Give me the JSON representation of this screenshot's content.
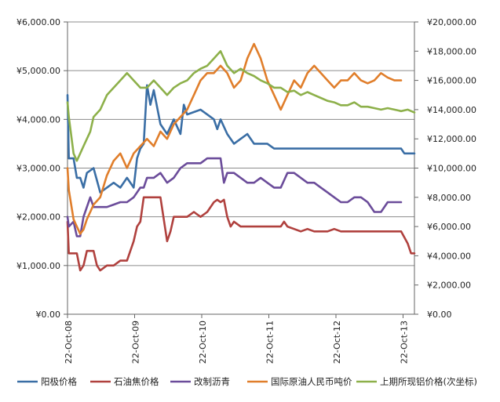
{
  "chart_data": {
    "type": "line",
    "title": "",
    "y_left": {
      "ticks": [
        "¥0.00",
        "¥1,000.00",
        "¥2,000.00",
        "¥3,000.00",
        "¥4,000.00",
        "¥5,000.00",
        "¥6,000.00"
      ],
      "range": [
        0,
        6000
      ]
    },
    "y_right": {
      "ticks": [
        "¥0.00",
        "¥2,000.00",
        "¥4,000.00",
        "¥6,000.00",
        "¥8,000.00",
        "¥10,000.00",
        "¥12,000.00",
        "¥14,000.00",
        "¥16,000.00",
        "¥18,000.00",
        "¥20,000.00"
      ],
      "range": [
        0,
        20000
      ]
    },
    "x_axis": {
      "ticks": [
        "22-Oct-08",
        "22-Oct-09",
        "22-Oct-10",
        "22-Oct-11",
        "22-Oct-12",
        "22-Oct-13"
      ],
      "range": [
        2008.81,
        2014.0
      ]
    },
    "grid": "horizontal",
    "legend_position": "bottom",
    "series": [
      {
        "name": "阳极价格",
        "axis": "left",
        "color": "#3A6EA5",
        "points": [
          [
            2008.81,
            4500
          ],
          [
            2008.83,
            3200
          ],
          [
            2008.9,
            3200
          ],
          [
            2008.95,
            2800
          ],
          [
            2009.0,
            2800
          ],
          [
            2009.05,
            2600
          ],
          [
            2009.1,
            2900
          ],
          [
            2009.2,
            3000
          ],
          [
            2009.3,
            2500
          ],
          [
            2009.4,
            2600
          ],
          [
            2009.5,
            2700
          ],
          [
            2009.6,
            2600
          ],
          [
            2009.7,
            2800
          ],
          [
            2009.8,
            2600
          ],
          [
            2009.85,
            3200
          ],
          [
            2009.9,
            3400
          ],
          [
            2009.95,
            3500
          ],
          [
            2010.0,
            4700
          ],
          [
            2010.05,
            4300
          ],
          [
            2010.1,
            4600
          ],
          [
            2010.2,
            3900
          ],
          [
            2010.3,
            3700
          ],
          [
            2010.4,
            4000
          ],
          [
            2010.5,
            3700
          ],
          [
            2010.55,
            4300
          ],
          [
            2010.6,
            4100
          ],
          [
            2010.7,
            4150
          ],
          [
            2010.8,
            4200
          ],
          [
            2010.9,
            4100
          ],
          [
            2011.0,
            4000
          ],
          [
            2011.05,
            3800
          ],
          [
            2011.1,
            4000
          ],
          [
            2011.2,
            3700
          ],
          [
            2011.3,
            3500
          ],
          [
            2011.4,
            3600
          ],
          [
            2011.5,
            3700
          ],
          [
            2011.6,
            3500
          ],
          [
            2011.7,
            3500
          ],
          [
            2011.8,
            3500
          ],
          [
            2011.9,
            3400
          ],
          [
            2012.0,
            3400
          ],
          [
            2012.2,
            3400
          ],
          [
            2012.5,
            3400
          ],
          [
            2012.8,
            3400
          ],
          [
            2013.0,
            3400
          ],
          [
            2013.5,
            3400
          ],
          [
            2013.8,
            3400
          ],
          [
            2013.85,
            3300
          ],
          [
            2014.0,
            3300
          ]
        ]
      },
      {
        "name": "石油焦价格",
        "axis": "left",
        "color": "#B0413E",
        "points": [
          [
            2008.81,
            1900
          ],
          [
            2008.83,
            1250
          ],
          [
            2008.95,
            1250
          ],
          [
            2009.0,
            900
          ],
          [
            2009.05,
            1000
          ],
          [
            2009.1,
            1300
          ],
          [
            2009.2,
            1300
          ],
          [
            2009.25,
            1000
          ],
          [
            2009.3,
            900
          ],
          [
            2009.4,
            1000
          ],
          [
            2009.5,
            1000
          ],
          [
            2009.6,
            1100
          ],
          [
            2009.7,
            1100
          ],
          [
            2009.8,
            1500
          ],
          [
            2009.85,
            1800
          ],
          [
            2009.9,
            1900
          ],
          [
            2009.95,
            2400
          ],
          [
            2010.0,
            2400
          ],
          [
            2010.1,
            2400
          ],
          [
            2010.2,
            2400
          ],
          [
            2010.3,
            1500
          ],
          [
            2010.35,
            1700
          ],
          [
            2010.4,
            2000
          ],
          [
            2010.5,
            2000
          ],
          [
            2010.6,
            2000
          ],
          [
            2010.7,
            2100
          ],
          [
            2010.8,
            2000
          ],
          [
            2010.9,
            2100
          ],
          [
            2011.0,
            2300
          ],
          [
            2011.05,
            2350
          ],
          [
            2011.1,
            2300
          ],
          [
            2011.15,
            2350
          ],
          [
            2011.2,
            2000
          ],
          [
            2011.25,
            1800
          ],
          [
            2011.3,
            1900
          ],
          [
            2011.4,
            1800
          ],
          [
            2011.5,
            1800
          ],
          [
            2011.6,
            1800
          ],
          [
            2011.7,
            1800
          ],
          [
            2011.8,
            1800
          ],
          [
            2011.9,
            1800
          ],
          [
            2012.0,
            1800
          ],
          [
            2012.05,
            1900
          ],
          [
            2012.1,
            1800
          ],
          [
            2012.2,
            1750
          ],
          [
            2012.3,
            1700
          ],
          [
            2012.4,
            1750
          ],
          [
            2012.5,
            1700
          ],
          [
            2012.6,
            1700
          ],
          [
            2012.7,
            1700
          ],
          [
            2012.8,
            1750
          ],
          [
            2012.9,
            1700
          ],
          [
            2013.0,
            1700
          ],
          [
            2013.2,
            1700
          ],
          [
            2013.5,
            1700
          ],
          [
            2013.8,
            1700
          ],
          [
            2013.9,
            1450
          ],
          [
            2013.95,
            1250
          ],
          [
            2014.0,
            1250
          ]
        ]
      },
      {
        "name": "改制沥青",
        "axis": "left",
        "color": "#6B4C9A",
        "points": [
          [
            2008.81,
            2000
          ],
          [
            2008.83,
            1800
          ],
          [
            2008.9,
            1900
          ],
          [
            2008.95,
            1600
          ],
          [
            2009.0,
            1600
          ],
          [
            2009.05,
            2000
          ],
          [
            2009.1,
            2200
          ],
          [
            2009.15,
            2400
          ],
          [
            2009.2,
            2200
          ],
          [
            2009.3,
            2200
          ],
          [
            2009.4,
            2200
          ],
          [
            2009.5,
            2250
          ],
          [
            2009.6,
            2300
          ],
          [
            2009.7,
            2300
          ],
          [
            2009.8,
            2400
          ],
          [
            2009.9,
            2600
          ],
          [
            2009.95,
            2600
          ],
          [
            2010.0,
            2800
          ],
          [
            2010.1,
            2800
          ],
          [
            2010.2,
            2900
          ],
          [
            2010.3,
            2700
          ],
          [
            2010.4,
            2800
          ],
          [
            2010.5,
            3000
          ],
          [
            2010.6,
            3100
          ],
          [
            2010.7,
            3100
          ],
          [
            2010.8,
            3100
          ],
          [
            2010.9,
            3200
          ],
          [
            2011.0,
            3200
          ],
          [
            2011.05,
            3200
          ],
          [
            2011.1,
            3200
          ],
          [
            2011.15,
            2700
          ],
          [
            2011.2,
            2900
          ],
          [
            2011.3,
            2900
          ],
          [
            2011.4,
            2800
          ],
          [
            2011.5,
            2700
          ],
          [
            2011.6,
            2700
          ],
          [
            2011.7,
            2800
          ],
          [
            2011.8,
            2700
          ],
          [
            2011.9,
            2600
          ],
          [
            2012.0,
            2600
          ],
          [
            2012.1,
            2900
          ],
          [
            2012.2,
            2900
          ],
          [
            2012.3,
            2800
          ],
          [
            2012.4,
            2700
          ],
          [
            2012.5,
            2700
          ],
          [
            2012.6,
            2600
          ],
          [
            2012.7,
            2500
          ],
          [
            2012.8,
            2400
          ],
          [
            2012.9,
            2300
          ],
          [
            2013.0,
            2300
          ],
          [
            2013.1,
            2400
          ],
          [
            2013.2,
            2400
          ],
          [
            2013.3,
            2300
          ],
          [
            2013.4,
            2100
          ],
          [
            2013.5,
            2100
          ],
          [
            2013.6,
            2300
          ],
          [
            2013.7,
            2300
          ],
          [
            2013.8,
            2300
          ]
        ]
      },
      {
        "name": "国际原油人民币吨价",
        "axis": "right",
        "color": "#E07E2B",
        "points": [
          [
            2008.81,
            10000
          ],
          [
            2008.83,
            8500
          ],
          [
            2008.9,
            6500
          ],
          [
            2008.95,
            6000
          ],
          [
            2009.0,
            5500
          ],
          [
            2009.05,
            5800
          ],
          [
            2009.1,
            6500
          ],
          [
            2009.15,
            7000
          ],
          [
            2009.2,
            7500
          ],
          [
            2009.3,
            8000
          ],
          [
            2009.4,
            9500
          ],
          [
            2009.5,
            10500
          ],
          [
            2009.6,
            11000
          ],
          [
            2009.7,
            10000
          ],
          [
            2009.8,
            11000
          ],
          [
            2009.9,
            11500
          ],
          [
            2010.0,
            12000
          ],
          [
            2010.1,
            11500
          ],
          [
            2010.2,
            12500
          ],
          [
            2010.3,
            12000
          ],
          [
            2010.4,
            13000
          ],
          [
            2010.5,
            13500
          ],
          [
            2010.6,
            14000
          ],
          [
            2010.7,
            15000
          ],
          [
            2010.8,
            16000
          ],
          [
            2010.9,
            16500
          ],
          [
            2011.0,
            16500
          ],
          [
            2011.1,
            17000
          ],
          [
            2011.2,
            16500
          ],
          [
            2011.3,
            15500
          ],
          [
            2011.4,
            16000
          ],
          [
            2011.5,
            17500
          ],
          [
            2011.6,
            18500
          ],
          [
            2011.7,
            17500
          ],
          [
            2011.8,
            16000
          ],
          [
            2011.9,
            15000
          ],
          [
            2012.0,
            14000
          ],
          [
            2012.1,
            15000
          ],
          [
            2012.2,
            16000
          ],
          [
            2012.3,
            15500
          ],
          [
            2012.4,
            16500
          ],
          [
            2012.5,
            17000
          ],
          [
            2012.6,
            16500
          ],
          [
            2012.7,
            16000
          ],
          [
            2012.8,
            15500
          ],
          [
            2012.9,
            16000
          ],
          [
            2013.0,
            16000
          ],
          [
            2013.1,
            16500
          ],
          [
            2013.2,
            16000
          ],
          [
            2013.3,
            15800
          ],
          [
            2013.4,
            16000
          ],
          [
            2013.5,
            16500
          ],
          [
            2013.6,
            16200
          ],
          [
            2013.7,
            16000
          ],
          [
            2013.8,
            16000
          ]
        ]
      },
      {
        "name": "上期所现铝价格(次坐标)",
        "axis": "right",
        "color": "#8DB04A",
        "points": [
          [
            2008.81,
            14500
          ],
          [
            2008.83,
            13500
          ],
          [
            2008.9,
            11000
          ],
          [
            2008.95,
            10500
          ],
          [
            2009.0,
            11000
          ],
          [
            2009.05,
            11500
          ],
          [
            2009.1,
            12000
          ],
          [
            2009.15,
            12500
          ],
          [
            2009.2,
            13500
          ],
          [
            2009.3,
            14000
          ],
          [
            2009.4,
            15000
          ],
          [
            2009.5,
            15500
          ],
          [
            2009.6,
            16000
          ],
          [
            2009.7,
            16500
          ],
          [
            2009.8,
            16000
          ],
          [
            2009.9,
            15500
          ],
          [
            2010.0,
            15500
          ],
          [
            2010.1,
            16000
          ],
          [
            2010.2,
            15500
          ],
          [
            2010.3,
            15000
          ],
          [
            2010.4,
            15500
          ],
          [
            2010.5,
            15800
          ],
          [
            2010.6,
            16000
          ],
          [
            2010.7,
            16500
          ],
          [
            2010.8,
            16800
          ],
          [
            2010.9,
            17000
          ],
          [
            2011.0,
            17500
          ],
          [
            2011.1,
            18000
          ],
          [
            2011.2,
            17000
          ],
          [
            2011.3,
            16500
          ],
          [
            2011.4,
            16800
          ],
          [
            2011.5,
            16500
          ],
          [
            2011.6,
            16300
          ],
          [
            2011.7,
            16000
          ],
          [
            2011.8,
            15800
          ],
          [
            2011.9,
            15500
          ],
          [
            2012.0,
            15500
          ],
          [
            2012.1,
            15200
          ],
          [
            2012.2,
            15300
          ],
          [
            2012.3,
            15000
          ],
          [
            2012.4,
            15200
          ],
          [
            2012.5,
            15000
          ],
          [
            2012.6,
            14800
          ],
          [
            2012.7,
            14600
          ],
          [
            2012.8,
            14500
          ],
          [
            2012.9,
            14300
          ],
          [
            2013.0,
            14300
          ],
          [
            2013.1,
            14500
          ],
          [
            2013.2,
            14200
          ],
          [
            2013.3,
            14200
          ],
          [
            2013.4,
            14100
          ],
          [
            2013.5,
            14000
          ],
          [
            2013.6,
            14100
          ],
          [
            2013.7,
            14000
          ],
          [
            2013.8,
            13900
          ],
          [
            2013.9,
            14000
          ],
          [
            2014.0,
            13800
          ]
        ]
      }
    ]
  }
}
